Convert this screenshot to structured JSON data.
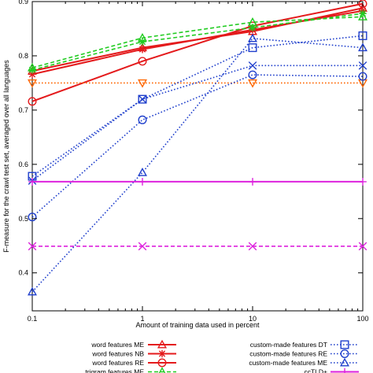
{
  "chart_data": {
    "type": "line",
    "xlabel": "Amount of training data used in percent",
    "ylabel": "F-measure for the crawl test set, averaged over all languages",
    "x_scale": "log",
    "xlim": [
      0.1,
      100
    ],
    "ylim": [
      0.33,
      0.9
    ],
    "x_ticks": [
      0.1,
      1,
      10,
      100
    ],
    "x_tick_labels": [
      "0.1",
      "1",
      "10",
      "100"
    ],
    "y_ticks": [
      0.4,
      0.5,
      0.6,
      0.7,
      0.8,
      0.9
    ],
    "y_tick_labels": [
      "0.4",
      "0.5",
      "0.6",
      "0.7",
      "0.8",
      "0.9"
    ],
    "grid": false,
    "legend_position": "bottom",
    "series": [
      {
        "name": "word features ME",
        "color": "#e41a1c",
        "marker": "triangle",
        "dash": "solid",
        "x": [
          0.1,
          1,
          10,
          100
        ],
        "y": [
          0.772,
          0.815,
          0.845,
          0.888
        ]
      },
      {
        "name": "word features NB",
        "color": "#e41a1c",
        "marker": "star",
        "dash": "solid",
        "x": [
          0.1,
          1,
          10,
          100
        ],
        "y": [
          0.766,
          0.812,
          0.848,
          0.883
        ]
      },
      {
        "name": "word features RE",
        "color": "#e41a1c",
        "marker": "circle",
        "dash": "solid",
        "x": [
          0.1,
          1,
          10,
          100
        ],
        "y": [
          0.716,
          0.79,
          0.855,
          0.896
        ]
      },
      {
        "name": "trigram features ME",
        "color": "#22cc22",
        "marker": "triangle",
        "dash": "dashed",
        "x": [
          0.1,
          1,
          10,
          100
        ],
        "y": [
          0.778,
          0.833,
          0.862,
          0.872
        ]
      },
      {
        "name": "",
        "color": "#22cc22",
        "marker": "star",
        "dash": "dashed",
        "x": [
          0.1,
          1,
          10,
          100
        ],
        "y": [
          0.774,
          0.826,
          0.852,
          0.878
        ]
      },
      {
        "name": "",
        "color": "#ff6600",
        "marker": "triangle-down",
        "dash": "dotted",
        "x": [
          0.1,
          1,
          10,
          100
        ],
        "y": [
          0.75,
          0.75,
          0.75,
          0.75
        ]
      },
      {
        "name": "custom-made features DT",
        "color": "#1f3fcc",
        "marker": "square",
        "dash": "dotted",
        "x": [
          0.1,
          1,
          10,
          100
        ],
        "y": [
          0.578,
          0.72,
          0.815,
          0.837
        ]
      },
      {
        "name": "custom-made features RE",
        "color": "#1f3fcc",
        "marker": "circle",
        "dash": "dotted",
        "x": [
          0.1,
          1,
          10,
          100
        ],
        "y": [
          0.503,
          0.682,
          0.765,
          0.762
        ]
      },
      {
        "name": "custom-made features ME",
        "color": "#1f3fcc",
        "marker": "triangle",
        "dash": "dotted",
        "x": [
          0.1,
          1,
          10,
          100
        ],
        "y": [
          0.365,
          0.585,
          0.832,
          0.815
        ]
      },
      {
        "name": "",
        "color": "#1f3fcc",
        "marker": "x",
        "dash": "dotted",
        "x": [
          0.1,
          1,
          10,
          100
        ],
        "y": [
          0.57,
          0.72,
          0.782,
          0.782
        ]
      },
      {
        "name": "ccTLD+",
        "color": "#dd22dd",
        "marker": "plus",
        "dash": "solid",
        "x": [
          0.1,
          1,
          10,
          100
        ],
        "y": [
          0.568,
          0.568,
          0.568,
          0.568
        ]
      },
      {
        "name": "",
        "color": "#dd22dd",
        "marker": "x",
        "dash": "dashed",
        "x": [
          0.1,
          1,
          10,
          100
        ],
        "y": [
          0.449,
          0.449,
          0.449,
          0.449
        ]
      }
    ],
    "legend_entries": [
      {
        "label": "word features ME",
        "series_index": 0
      },
      {
        "label": "word features NB",
        "series_index": 1
      },
      {
        "label": "word features RE",
        "series_index": 2
      },
      {
        "label": "trigram features ME",
        "series_index": 3
      },
      {
        "label": "custom-made features DT",
        "series_index": 6
      },
      {
        "label": "custom-made features RE",
        "series_index": 7
      },
      {
        "label": "custom-made features ME",
        "series_index": 8
      },
      {
        "label": "ccTLD+",
        "series_index": 10
      }
    ]
  }
}
